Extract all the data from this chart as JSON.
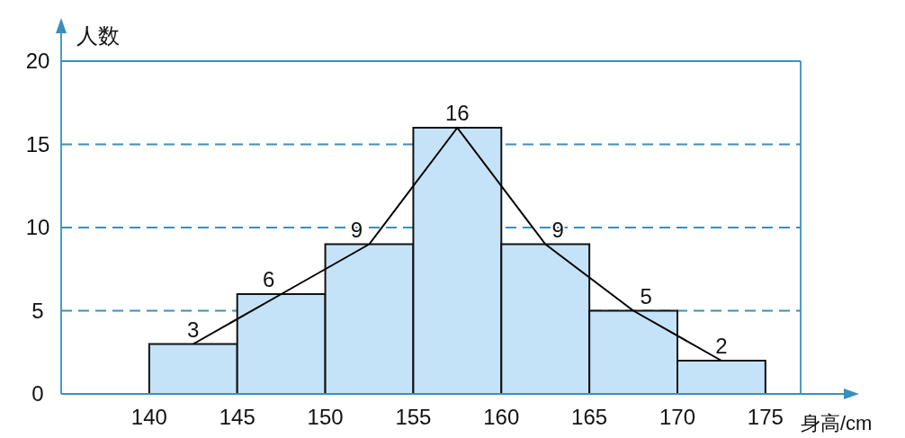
{
  "chart_data": {
    "type": "histogram",
    "xlabel": "身高/cm",
    "ylabel": "人数",
    "bins": [
      140,
      145,
      150,
      155,
      160,
      165,
      170,
      175
    ],
    "series": [
      {
        "color": "#c5e3f8",
        "values": [
          3,
          6,
          9,
          16,
          9,
          5,
          2
        ],
        "value_labels": [
          "3",
          "6",
          "9",
          "16",
          "9",
          "5",
          "2"
        ]
      },
      {
        "type": "line",
        "color": "#000000",
        "x": [
          142.5,
          147.5,
          152.5,
          157.5,
          162.5,
          167.5,
          172.5
        ],
        "values": [
          3,
          6,
          9,
          16,
          9,
          5,
          2
        ]
      }
    ],
    "xlim": [
      135,
      177
    ],
    "ylim": [
      0,
      20
    ],
    "xticks": [
      140,
      145,
      150,
      155,
      160,
      165,
      170,
      175
    ],
    "yticks": [
      0,
      5,
      10,
      15,
      20
    ],
    "grid": "y",
    "marker": "none",
    "line_style": "solid",
    "legend": false
  }
}
